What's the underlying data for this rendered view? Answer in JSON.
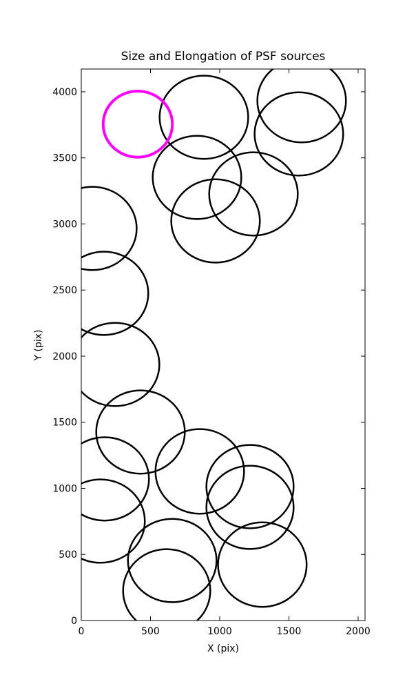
{
  "chart_data": {
    "type": "ellipse",
    "title": "Size and Elongation of PSF sources",
    "xlabel": "X (pix)",
    "ylabel": "Y (pix)",
    "xlim": [
      0,
      2050
    ],
    "ylim": [
      0,
      4172
    ],
    "xticks": [
      0,
      500,
      1000,
      1500,
      2000
    ],
    "yticks": [
      0,
      500,
      1000,
      1500,
      2000,
      2500,
      3000,
      3500,
      4000
    ],
    "grid": false,
    "series": [
      {
        "color": "#000000",
        "x": [
          886,
          1592,
          1572,
          836,
          1244,
          970,
          80,
          164,
          244,
          428,
          856,
          169,
          1219,
          1219,
          139,
          657,
          1308,
          617
        ],
        "values": [
          3807,
          3932,
          3681,
          3352,
          3227,
          3023,
          2966,
          2475,
          1937,
          1426,
          1128,
          1071,
          1013,
          856,
          752,
          454,
          423,
          225
        ],
        "widths": [
          640,
          640,
          640,
          640,
          640,
          640,
          640,
          640,
          640,
          640,
          640,
          640,
          630,
          630,
          640,
          640,
          640,
          630
        ],
        "heights": [
          630,
          630,
          630,
          630,
          630,
          630,
          630,
          630,
          630,
          630,
          640,
          630,
          630,
          630,
          630,
          630,
          640,
          630
        ]
      },
      {
        "color": "#ff00ff",
        "x": [
          408
        ],
        "values": [
          3755
        ],
        "widths": [
          500
        ],
        "heights": [
          500
        ]
      }
    ]
  }
}
